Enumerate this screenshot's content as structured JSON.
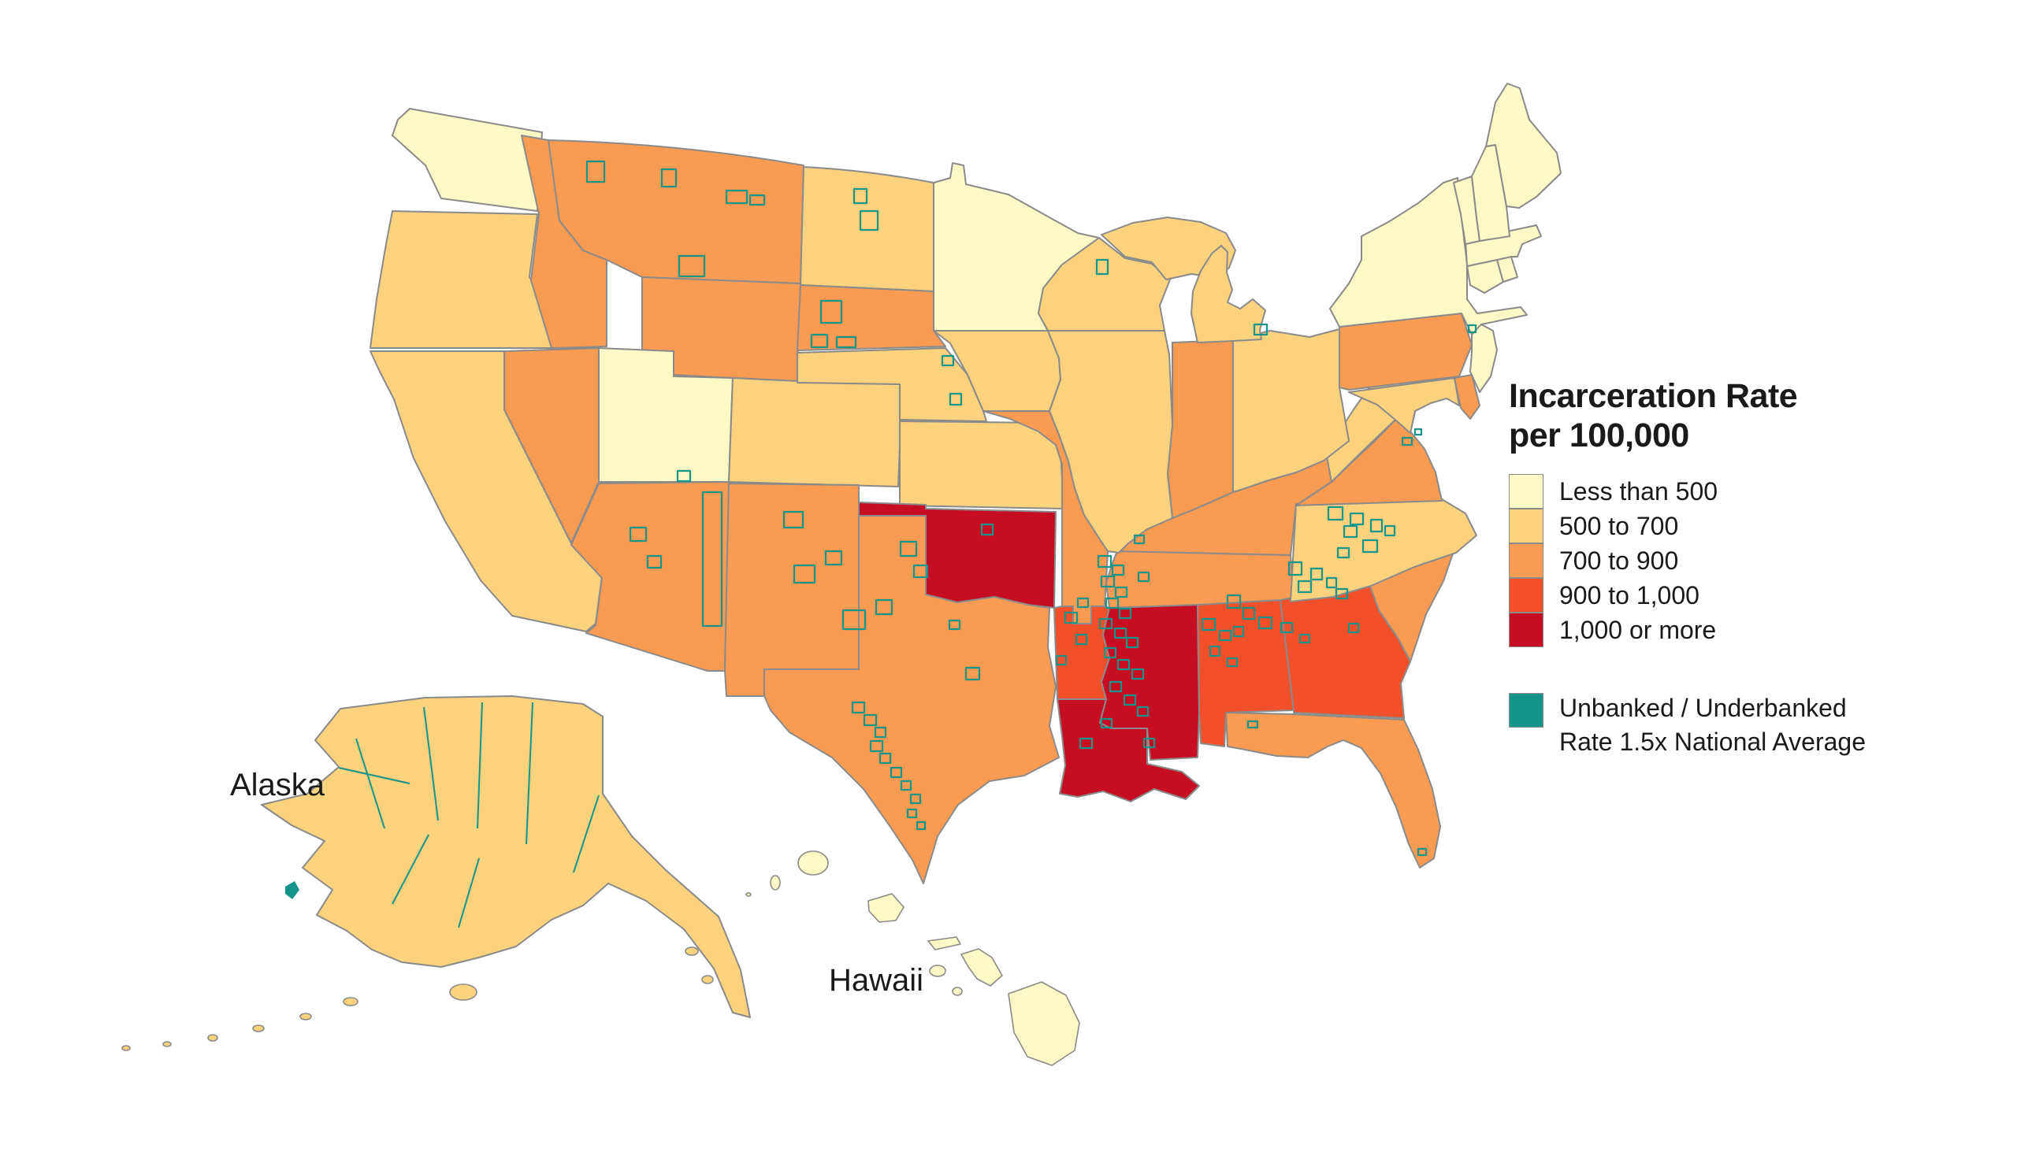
{
  "page": {
    "background": "#FFFFFF"
  },
  "colors": {
    "state_border": "#8A8A8A",
    "coast": "#8A8A8A",
    "text": "#1A1A1A"
  },
  "legend": {
    "title_line1": "Incarceration Rate",
    "title_line2": "per 100,000",
    "items": [
      {
        "key": "lt500",
        "label": "Less than 500",
        "color": "#FDF9C6"
      },
      {
        "key": "b500_700",
        "label": "500 to 700",
        "color": "#FBD27E"
      },
      {
        "key": "b700_900",
        "label": "700 to 900",
        "color": "#F99B52"
      },
      {
        "key": "b900_1000",
        "label": "900 to 1,000",
        "color": "#F2502B"
      },
      {
        "key": "b1000plus",
        "label": "1,000 or more",
        "color": "#C60D22"
      }
    ],
    "unbanked": {
      "label_line1": "Unbanked / Underbanked",
      "label_line2": "Rate 1.5x National Average",
      "color": "#15948A"
    }
  },
  "map": {
    "labels": {
      "alaska": "Alaska",
      "hawaii": "Hawaii"
    },
    "states": [
      {
        "id": "WA",
        "name": "Washington",
        "category": "lt500"
      },
      {
        "id": "OR",
        "name": "Oregon",
        "category": "b500_700"
      },
      {
        "id": "CA",
        "name": "California",
        "category": "b500_700"
      },
      {
        "id": "NV",
        "name": "Nevada",
        "category": "b700_900"
      },
      {
        "id": "ID",
        "name": "Idaho",
        "category": "b700_900"
      },
      {
        "id": "MT",
        "name": "Montana",
        "category": "b700_900"
      },
      {
        "id": "WY",
        "name": "Wyoming",
        "category": "b700_900"
      },
      {
        "id": "UT",
        "name": "Utah",
        "category": "lt500"
      },
      {
        "id": "CO",
        "name": "Colorado",
        "category": "b500_700"
      },
      {
        "id": "AZ",
        "name": "Arizona",
        "category": "b700_900"
      },
      {
        "id": "NM",
        "name": "New Mexico",
        "category": "b700_900"
      },
      {
        "id": "ND",
        "name": "North Dakota",
        "category": "b500_700"
      },
      {
        "id": "SD",
        "name": "South Dakota",
        "category": "b700_900"
      },
      {
        "id": "NE",
        "name": "Nebraska",
        "category": "b500_700"
      },
      {
        "id": "KS",
        "name": "Kansas",
        "category": "b500_700"
      },
      {
        "id": "OK",
        "name": "Oklahoma",
        "category": "b1000plus"
      },
      {
        "id": "TX",
        "name": "Texas",
        "category": "b700_900"
      },
      {
        "id": "MN",
        "name": "Minnesota",
        "category": "lt500"
      },
      {
        "id": "IA",
        "name": "Iowa",
        "category": "b500_700"
      },
      {
        "id": "MO",
        "name": "Missouri",
        "category": "b700_900"
      },
      {
        "id": "AR",
        "name": "Arkansas",
        "category": "b900_1000"
      },
      {
        "id": "LA",
        "name": "Louisiana",
        "category": "b1000plus"
      },
      {
        "id": "WI",
        "name": "Wisconsin",
        "category": "b500_700"
      },
      {
        "id": "IL",
        "name": "Illinois",
        "category": "b500_700"
      },
      {
        "id": "MS",
        "name": "Mississippi",
        "category": "b1000plus"
      },
      {
        "id": "MI",
        "name": "Michigan",
        "category": "b500_700"
      },
      {
        "id": "IN",
        "name": "Indiana",
        "category": "b700_900"
      },
      {
        "id": "OH",
        "name": "Ohio",
        "category": "b500_700"
      },
      {
        "id": "KY",
        "name": "Kentucky",
        "category": "b700_900"
      },
      {
        "id": "TN",
        "name": "Tennessee",
        "category": "b700_900"
      },
      {
        "id": "AL",
        "name": "Alabama",
        "category": "b900_1000"
      },
      {
        "id": "GA",
        "name": "Georgia",
        "category": "b900_1000"
      },
      {
        "id": "FL",
        "name": "Florida",
        "category": "b700_900"
      },
      {
        "id": "SC",
        "name": "South Carolina",
        "category": "b700_900"
      },
      {
        "id": "NC",
        "name": "North Carolina",
        "category": "b500_700"
      },
      {
        "id": "VA",
        "name": "Virginia",
        "category": "b700_900"
      },
      {
        "id": "WV",
        "name": "West Virginia",
        "category": "b500_700"
      },
      {
        "id": "MD",
        "name": "Maryland",
        "category": "b500_700"
      },
      {
        "id": "DE",
        "name": "Delaware",
        "category": "b700_900"
      },
      {
        "id": "NJ",
        "name": "New Jersey",
        "category": "lt500"
      },
      {
        "id": "PA",
        "name": "Pennsylvania",
        "category": "b700_900"
      },
      {
        "id": "NY",
        "name": "New York",
        "category": "lt500"
      },
      {
        "id": "CT",
        "name": "Connecticut",
        "category": "lt500"
      },
      {
        "id": "RI",
        "name": "Rhode Island",
        "category": "lt500"
      },
      {
        "id": "MA",
        "name": "Massachusetts",
        "category": "lt500"
      },
      {
        "id": "VT",
        "name": "Vermont",
        "category": "lt500"
      },
      {
        "id": "NH",
        "name": "New Hampshire",
        "category": "lt500"
      },
      {
        "id": "ME",
        "name": "Maine",
        "category": "lt500"
      },
      {
        "id": "AK",
        "name": "Alaska",
        "category": "b500_700"
      },
      {
        "id": "HI",
        "name": "Hawaii",
        "category": "lt500"
      }
    ],
    "unbanked_overlay_states": [
      "AK",
      "AZ",
      "NM",
      "UT",
      "MT",
      "ND",
      "SD",
      "NE",
      "IA",
      "WI",
      "MI",
      "NY",
      "VA",
      "NC",
      "SC",
      "GA",
      "FL",
      "AL",
      "MS",
      "LA",
      "AR",
      "TN",
      "MO",
      "KY",
      "OK",
      "TX"
    ]
  },
  "chart_data": {
    "type": "choropleth",
    "title": "Incarceration Rate per 100,000",
    "legend_position": "right",
    "categories": [
      "Less than 500",
      "500 to 700",
      "700 to 900",
      "900 to 1,000",
      "1,000 or more"
    ],
    "category_colors": [
      "#FDF9C6",
      "#FBD27E",
      "#F99B52",
      "#F2502B",
      "#C60D22"
    ],
    "states_by_category": {
      "Less than 500": [
        "WA",
        "UT",
        "MN",
        "NY",
        "NJ",
        "CT",
        "RI",
        "MA",
        "VT",
        "NH",
        "ME",
        "HI"
      ],
      "500 to 700": [
        "OR",
        "CA",
        "CO",
        "ND",
        "NE",
        "KS",
        "IA",
        "WI",
        "IL",
        "MI",
        "OH",
        "WV",
        "MD",
        "NC",
        "AK"
      ],
      "700 to 900": [
        "NV",
        "ID",
        "MT",
        "WY",
        "AZ",
        "NM",
        "SD",
        "TX",
        "MO",
        "IN",
        "KY",
        "TN",
        "VA",
        "PA",
        "DE",
        "FL",
        "SC"
      ],
      "900 to 1,000": [
        "AR",
        "AL",
        "GA"
      ],
      "1,000 or more": [
        "OK",
        "LA",
        "MS"
      ]
    },
    "overlay": {
      "label": "Unbanked / Underbanked Rate 1.5x National Average",
      "color": "#15948A",
      "states_with_highlighted_counties": [
        "AK",
        "AZ",
        "NM",
        "UT",
        "MT",
        "ND",
        "SD",
        "NE",
        "IA",
        "WI",
        "MI",
        "NY",
        "VA",
        "NC",
        "SC",
        "GA",
        "FL",
        "AL",
        "MS",
        "LA",
        "AR",
        "TN",
        "MO",
        "KY",
        "OK",
        "TX"
      ]
    }
  }
}
